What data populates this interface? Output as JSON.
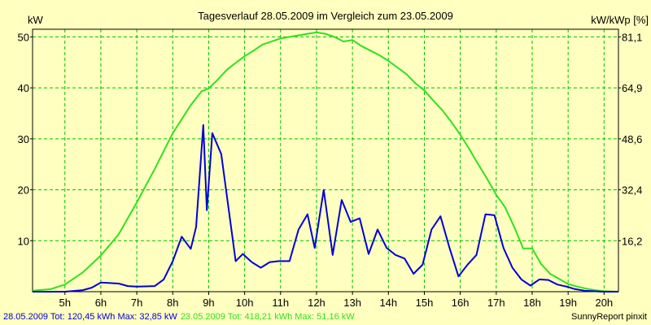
{
  "chart_data": {
    "type": "line",
    "title": "Tagesverlauf 28.05.2009 im Vergleich zum 23.05.2009",
    "ylabel_left": "kW",
    "ylabel_right": "kW/kWp [%]",
    "x_ticks": [
      "5h",
      "6h",
      "7h",
      "8h",
      "9h",
      "10h",
      "11h",
      "12h",
      "13h",
      "14h",
      "15h",
      "16h",
      "17h",
      "18h",
      "19h",
      "20h"
    ],
    "x_tick_values": [
      5,
      6,
      7,
      8,
      9,
      10,
      11,
      12,
      13,
      14,
      15,
      16,
      17,
      18,
      19,
      20
    ],
    "xlim": [
      4.1,
      20.4
    ],
    "ylim": [
      0,
      51.5
    ],
    "y_ticks": [
      10,
      20,
      30,
      40,
      50
    ],
    "y_ticks_right": [
      "16,2",
      "32,4",
      "48,6",
      "64,9",
      "81,1"
    ],
    "y_ticks_right_values": [
      10,
      20,
      30,
      40,
      50
    ],
    "grid": true,
    "grid_color": "#00c000",
    "series": [
      {
        "name": "28.05.2009",
        "color": "#0000d8",
        "x": [
          4.1,
          5.0,
          5.5,
          5.75,
          6.0,
          6.5,
          6.75,
          7.0,
          7.5,
          7.75,
          8.0,
          8.25,
          8.5,
          8.65,
          8.85,
          8.95,
          9.1,
          9.35,
          9.75,
          9.95,
          10.2,
          10.45,
          10.7,
          10.95,
          11.25,
          11.5,
          11.75,
          11.95,
          12.2,
          12.45,
          12.7,
          12.95,
          13.2,
          13.45,
          13.7,
          13.95,
          14.2,
          14.45,
          14.7,
          14.95,
          15.2,
          15.45,
          15.7,
          15.95,
          16.2,
          16.45,
          16.7,
          16.95,
          17.2,
          17.45,
          17.7,
          17.95,
          18.2,
          18.45,
          18.7,
          18.95,
          19.2,
          19.45,
          19.7,
          19.95,
          20.2,
          20.4
        ],
        "y": [
          0,
          0,
          0.3,
          0.8,
          1.8,
          1.6,
          1.1,
          1.0,
          1.1,
          2.4,
          6.0,
          10.8,
          8.4,
          12.7,
          32.7,
          16.0,
          31.1,
          27.0,
          6.0,
          7.4,
          5.8,
          4.7,
          5.8,
          6.0,
          6.0,
          12.2,
          15.2,
          8.6,
          20.0,
          7.2,
          18.0,
          13.7,
          14.4,
          7.4,
          12.2,
          8.6,
          7.2,
          6.5,
          3.5,
          5.3,
          12.2,
          14.8,
          8.6,
          3.0,
          5.3,
          7.2,
          15.2,
          15.0,
          8.6,
          4.7,
          2.4,
          1.2,
          2.4,
          2.3,
          1.4,
          1.0,
          0.5,
          0.2,
          0.1,
          0.0,
          0.0,
          0.0
        ]
      },
      {
        "name": "23.05.2009",
        "color": "#30e020",
        "x": [
          4.1,
          4.6,
          5.0,
          5.5,
          6.0,
          6.5,
          7.0,
          7.5,
          8.0,
          8.5,
          8.8,
          9.0,
          9.25,
          9.5,
          9.75,
          10.0,
          10.25,
          10.5,
          10.75,
          11.0,
          11.25,
          11.5,
          11.75,
          12.0,
          12.25,
          12.5,
          12.75,
          13.0,
          13.25,
          13.5,
          13.75,
          14.0,
          14.25,
          14.5,
          14.75,
          15.0,
          15.25,
          15.5,
          15.75,
          16.0,
          16.25,
          16.5,
          16.75,
          17.0,
          17.25,
          17.5,
          17.75,
          18.0,
          18.25,
          18.5,
          18.75,
          19.0,
          19.25,
          19.5,
          19.75,
          20.0,
          20.4
        ],
        "y": [
          0.2,
          0.5,
          1.4,
          3.8,
          7.1,
          11.3,
          17.5,
          24.1,
          31.1,
          36.6,
          39.3,
          39.9,
          41.6,
          43.5,
          44.9,
          46.2,
          47.3,
          48.5,
          49.1,
          49.7,
          50.0,
          50.3,
          50.6,
          50.9,
          50.6,
          50.0,
          49.1,
          49.4,
          48.2,
          47.3,
          46.4,
          45.3,
          44.0,
          42.7,
          40.9,
          39.5,
          37.5,
          35.6,
          33.3,
          30.8,
          28.0,
          25.0,
          22.1,
          19.0,
          16.5,
          12.7,
          8.5,
          8.5,
          5.4,
          3.5,
          2.5,
          1.5,
          1.0,
          0.6,
          0.3,
          0.1,
          0.0
        ]
      }
    ]
  },
  "footer": {
    "series1_text": "28.05.2009 Tot: 120,45 kWh Max: 32,85 kW",
    "series2_text": "23.05.2009 Tot: 418,21 kWh Max: 51,16 kW",
    "credit": "SunnyReport pinxit"
  }
}
